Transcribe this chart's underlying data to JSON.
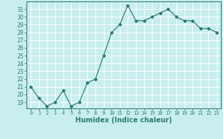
{
  "x": [
    0,
    1,
    2,
    3,
    4,
    5,
    6,
    7,
    8,
    9,
    10,
    11,
    12,
    13,
    14,
    15,
    16,
    17,
    18,
    19,
    20,
    21,
    22,
    23
  ],
  "y": [
    21,
    19.5,
    18.5,
    19,
    20.5,
    18.5,
    19,
    21.5,
    22,
    25,
    28,
    29,
    31.5,
    29.5,
    29.5,
    30,
    30.5,
    31,
    30,
    29.5,
    29.5,
    28.5,
    28.5,
    28
  ],
  "line_color": "#2e7d72",
  "bg_color": "#c8eeee",
  "grid_color": "#ffffff",
  "xlabel": "Humidex (Indice chaleur)",
  "xlabel_fontsize": 7,
  "tick_color": "#2e7d72",
  "ylabel_ticks": [
    19,
    20,
    21,
    22,
    23,
    24,
    25,
    26,
    27,
    28,
    29,
    30,
    31
  ],
  "ylim": [
    18.2,
    32.0
  ],
  "xlim": [
    -0.5,
    23.5
  ]
}
